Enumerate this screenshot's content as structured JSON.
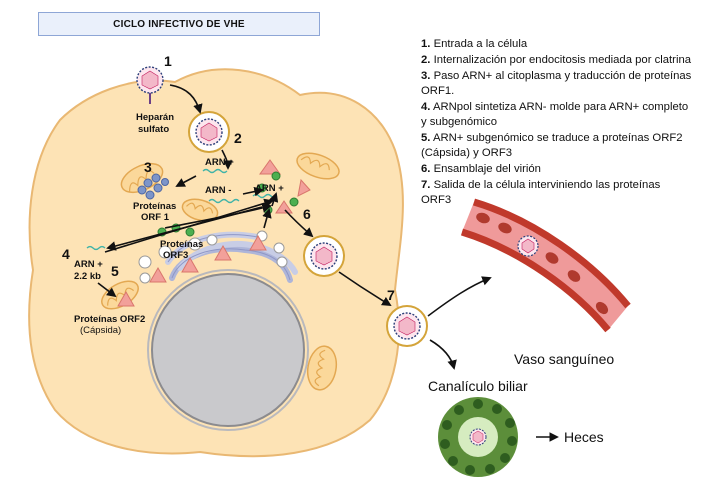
{
  "title": "CICLO INFECTIVO DE VHE",
  "legend": [
    {
      "num": "1.",
      "text": "Entrada a la célula"
    },
    {
      "num": "2.",
      "text": "Internalización por endocitosis mediada por clatrina"
    },
    {
      "num": "3.",
      "text": "Paso ARN+ al citoplasma y traducción de proteínas ORF1."
    },
    {
      "num": "4.",
      "text": "ARNpol sintetiza ARN- molde para ARN+ completo y subgenómico"
    },
    {
      "num": "5.",
      "text": "ARN+ subgenómico se traduce a proteínas ORF2 (Cápsida) y ORF3"
    },
    {
      "num": "6.",
      "text": "Ensamblaje del virión"
    },
    {
      "num": "7.",
      "text": "Salida de la célula interviniendo las proteínas ORF3"
    }
  ],
  "steps": [
    "1",
    "2",
    "3",
    "4",
    "5",
    "6",
    "7"
  ],
  "labels": {
    "heparan_1": "Heparán",
    "heparan_2": "sulfato",
    "arn_plus_1": "ARN +",
    "arn_minus": "ARN -",
    "arn_plus_2": "ARN +",
    "orf1_1": "Proteínas",
    "orf1_2": "ORF 1",
    "orf3_1": "Proteínas",
    "orf3_2": "ORF3",
    "arn_22_1": "ARN +",
    "arn_22_2": "2.2 kb",
    "orf2_1": "Proteínas ORF2",
    "orf2_2": "(Cápsida)",
    "vaso": "Vaso sanguíneo",
    "canaliculo": "Canalículo biliar",
    "heces": "Heces"
  },
  "colors": {
    "cell_fill": "#fde3b5",
    "cell_stroke": "#e9b873",
    "mito_fill": "#fbd89a",
    "nucleus": "#c9c9cc",
    "er": "#c8cde6",
    "vessel_dark": "#c0392b",
    "vessel_light": "#ef9a9a",
    "rbc": "#b03a2e",
    "bile_green": "#5c8e3a",
    "bile_light": "#d6ecc0",
    "particle_pink": "#f2a09a",
    "ribosome_blue": "#7d95c9",
    "orf3_green": "#4caf50",
    "title_border": "#8ea6d6"
  },
  "icons": [
    "virion-icon",
    "arrow-icon",
    "mitochondrion-icon",
    "nucleus-icon",
    "er-icon",
    "ribosome-icon"
  ]
}
